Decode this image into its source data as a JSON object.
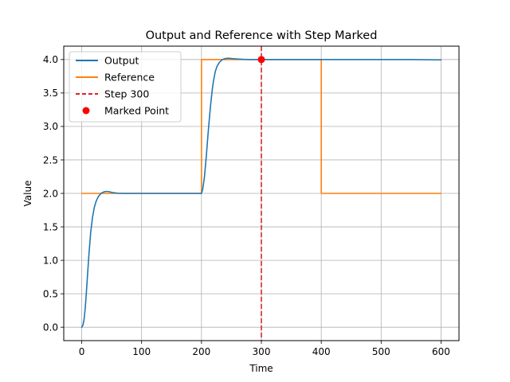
{
  "chart_data": {
    "type": "line",
    "title": "Output and Reference with Step Marked",
    "xlabel": "Time",
    "ylabel": "Value",
    "xlim": [
      -30,
      630
    ],
    "ylim": [
      -0.2,
      4.2
    ],
    "xticks": [
      0,
      100,
      200,
      300,
      400,
      500,
      600
    ],
    "xtick_labels": [
      "0",
      "100",
      "200",
      "300",
      "400",
      "500",
      "600"
    ],
    "yticks": [
      0.0,
      0.5,
      1.0,
      1.5,
      2.0,
      2.5,
      3.0,
      3.5,
      4.0
    ],
    "ytick_labels": [
      "0.0",
      "0.5",
      "1.0",
      "1.5",
      "2.0",
      "2.5",
      "3.0",
      "3.5",
      "4.0"
    ],
    "grid": true,
    "legend_position": "top-left",
    "series": [
      {
        "name": "Output",
        "kind": "line",
        "color": "#1f77b4",
        "x": [
          0,
          2,
          4,
          6,
          8,
          10,
          12,
          15,
          18,
          21,
          24,
          27,
          30,
          34,
          38,
          42,
          46,
          50,
          55,
          60,
          70,
          80,
          100,
          150,
          200,
          202,
          205,
          208,
          210,
          212,
          215,
          218,
          220,
          223,
          226,
          230,
          235,
          240,
          245,
          250,
          260,
          270,
          280,
          300,
          350,
          400,
          450,
          500,
          550,
          600
        ],
        "y": [
          0.0,
          0.03,
          0.12,
          0.3,
          0.55,
          0.82,
          1.08,
          1.42,
          1.64,
          1.79,
          1.88,
          1.94,
          1.98,
          2.01,
          2.025,
          2.03,
          2.025,
          2.015,
          2.008,
          2.003,
          2.0,
          2.0,
          2.0,
          2.0,
          2.0,
          2.06,
          2.25,
          2.55,
          2.78,
          3.0,
          3.3,
          3.55,
          3.68,
          3.82,
          3.9,
          3.96,
          4.0,
          4.015,
          4.02,
          4.015,
          4.008,
          4.003,
          4.0,
          4.0,
          4.0,
          4.0,
          4.0,
          4.0,
          4.0,
          3.995
        ]
      },
      {
        "name": "Reference",
        "kind": "line",
        "color": "#ff7f0e",
        "x": [
          0,
          200,
          200,
          400,
          400,
          600
        ],
        "y": [
          2.0,
          2.0,
          4.0,
          4.0,
          2.0,
          2.0
        ]
      },
      {
        "name": "Step 300",
        "kind": "vline",
        "color": "#d62728",
        "x": 300
      },
      {
        "name": "Marked Point",
        "kind": "point",
        "color": "#ff0000",
        "x": 300,
        "y": 4.0
      }
    ]
  }
}
